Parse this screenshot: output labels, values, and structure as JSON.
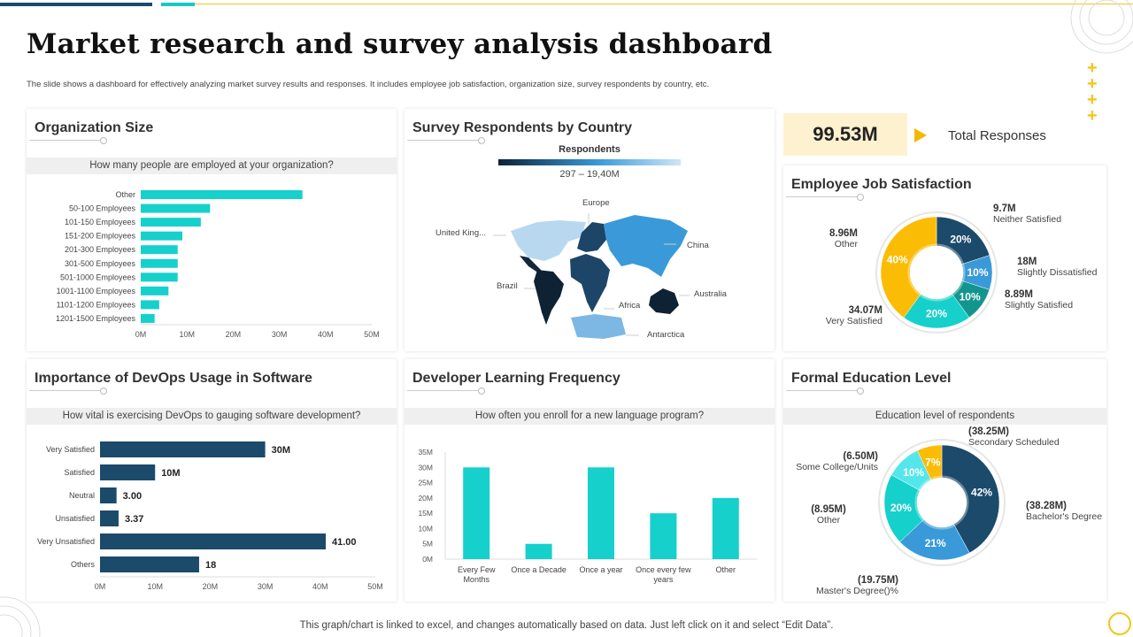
{
  "header": {
    "title": "Market research and survey analysis dashboard",
    "subtitle": "The slide shows a dashboard for effectively analyzing market survey results and responses. It includes employee job satisfaction, organization size, survey respondents by country, etc."
  },
  "colors": {
    "navy": "#1b4a6b",
    "cyan": "#16d0cc",
    "blue": "#3a9ad9",
    "teal": "#12958f",
    "yellow": "#fbbc05",
    "light_cyan": "#55e6ec"
  },
  "org_size": {
    "title": "Organization Size",
    "question": "How many people are employed at your organization?",
    "chart_data": {
      "type": "bar",
      "orientation": "horizontal",
      "categories": [
        "Other",
        "50-100 Employees",
        "101-150 Employees",
        "151-200 Employees",
        "201-300 Employees",
        "301-500 Employees",
        "501-1000 Employees",
        "1001-1100 Employees",
        "1101-1200 Employees",
        "1201-1500 Employees"
      ],
      "values": [
        35,
        15,
        13,
        9,
        8,
        8,
        8,
        6,
        4,
        3
      ],
      "unit": "M",
      "xlim": [
        0,
        50
      ],
      "ticks": [
        "0M",
        "10M",
        "20M",
        "30M",
        "40M",
        "50M"
      ]
    }
  },
  "survey": {
    "title": "Survey Respondents by Country",
    "legend_title": "Respondents",
    "legend_range": "297 – 19,40M",
    "regions": [
      "Europe",
      "United King...",
      "China",
      "Brazil",
      "Australia",
      "Africa",
      "Antarctica"
    ]
  },
  "total": {
    "value": "99.53M",
    "label": "Total Responses"
  },
  "satisfaction": {
    "title": "Employee Job Satisfaction",
    "chart_data": {
      "type": "pie",
      "donut": true,
      "slices": [
        {
          "name": "Neither Satisfied",
          "value": "9.7M",
          "percent": 20,
          "pct_label": "20%",
          "color": "#1b4a6b"
        },
        {
          "name": "Slightly Dissatisfied",
          "value": "18M",
          "percent": 10,
          "pct_label": "10%",
          "color": "#3a9ad9"
        },
        {
          "name": "Slightly Satisfied",
          "value": "8.89M",
          "percent": 10,
          "pct_label": "10%",
          "color": "#12958f"
        },
        {
          "name": "Very Satisfied",
          "value": "34.07M",
          "percent": 20,
          "pct_label": "20%",
          "color": "#16d0cc"
        },
        {
          "name": "Other",
          "value": "8.96M",
          "percent": 40,
          "pct_label": "40%",
          "color": "#fbbc05"
        }
      ]
    }
  },
  "devops": {
    "title": "Importance of DevOps Usage in Software",
    "question": "How vital is exercising DevOps to gauging software development?",
    "chart_data": {
      "type": "bar",
      "orientation": "horizontal",
      "categories": [
        "Very Satisfied",
        "Satisfied",
        "Neutral",
        "Unsatisfied",
        "Very Unsatisfied",
        "Others"
      ],
      "values": [
        30,
        10,
        3,
        3.37,
        41,
        18
      ],
      "data_labels": [
        "30M",
        "10M",
        "3.00",
        "3.37",
        "41.00",
        "18"
      ],
      "xlim": [
        0,
        50
      ],
      "ticks": [
        "0M",
        "10M",
        "20M",
        "30M",
        "40M",
        "50M"
      ]
    }
  },
  "learning": {
    "title": "Developer Learning Frequency",
    "question": "How often you enroll for a new language program?",
    "chart_data": {
      "type": "bar",
      "categories": [
        "Every Few|Months",
        "Once a Decade",
        "Once a year",
        "Once every few|years",
        "Other"
      ],
      "values": [
        30,
        5,
        30,
        15,
        20
      ],
      "ylim": [
        0,
        35
      ],
      "ticks": [
        "0M",
        "5M",
        "10M",
        "15M",
        "20M",
        "25M",
        "30M",
        "35M"
      ]
    }
  },
  "education": {
    "title": "Formal Education Level",
    "question": "Education level of respondents",
    "chart_data": {
      "type": "pie",
      "donut": true,
      "slices": [
        {
          "name": "Bachelor's Degree",
          "value": "(38.28M)",
          "percent": 42,
          "pct_label": "42%",
          "color": "#1b4a6b"
        },
        {
          "name": "Master's Degree()%",
          "value": "(19.75M)",
          "percent": 21,
          "pct_label": "21%",
          "color": "#3a9ad9"
        },
        {
          "name": "Other",
          "value": "(8.95M)",
          "percent": 20,
          "pct_label": "20%",
          "color": "#16d0cc"
        },
        {
          "name": "Some College/Units",
          "value": "(6.50M)",
          "percent": 10,
          "pct_label": "10%",
          "color": "#55e6ec"
        },
        {
          "name": "Secondary Scheduled",
          "value": "(38.25M)",
          "percent": 7,
          "pct_label": "7%",
          "color": "#fbbc05"
        }
      ]
    }
  },
  "footer": "This graph/chart is linked to excel, and changes automatically based on data. Just left click on it and select “Edit Data”."
}
